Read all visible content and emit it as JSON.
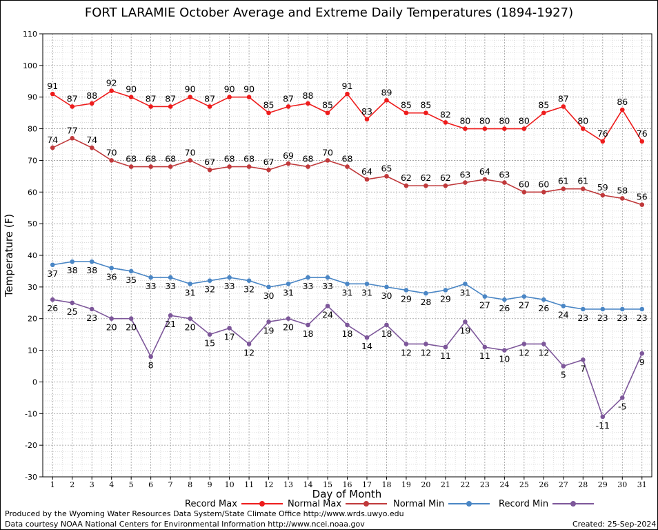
{
  "chart_data": {
    "type": "line",
    "title": "FORT LARAMIE October Average and Extreme Daily Temperatures (1894-1927)",
    "xlabel": "Day of Month",
    "ylabel": "Temperature (F)",
    "ylim": [
      -30,
      110
    ],
    "yticks": [
      -30,
      -20,
      -10,
      0,
      10,
      20,
      30,
      40,
      50,
      60,
      70,
      80,
      90,
      100,
      110
    ],
    "x": [
      1,
      2,
      3,
      4,
      5,
      6,
      7,
      8,
      9,
      10,
      11,
      12,
      13,
      14,
      15,
      16,
      17,
      18,
      19,
      20,
      21,
      22,
      23,
      24,
      25,
      26,
      27,
      28,
      29,
      30,
      31
    ],
    "grid": true,
    "series": [
      {
        "name": "Record Max",
        "color": "#ee1c1c",
        "label_pos": "above",
        "values": [
          91,
          87,
          88,
          92,
          90,
          87,
          87,
          90,
          87,
          90,
          90,
          85,
          87,
          88,
          85,
          91,
          83,
          89,
          85,
          85,
          82,
          80,
          80,
          80,
          80,
          85,
          87,
          80,
          76,
          86,
          76
        ]
      },
      {
        "name": "Normal Max",
        "color": "#c0393b",
        "label_pos": "above",
        "values": [
          74,
          77,
          74,
          70,
          68,
          68,
          68,
          70,
          67,
          68,
          68,
          67,
          69,
          68,
          70,
          68,
          64,
          65,
          62,
          62,
          62,
          63,
          64,
          63,
          60,
          60,
          61,
          61,
          59,
          58,
          56
        ]
      },
      {
        "name": "Normal Min",
        "color": "#4a86c5",
        "label_pos": "below",
        "values": [
          37,
          38,
          38,
          36,
          35,
          33,
          33,
          31,
          32,
          33,
          32,
          30,
          31,
          33,
          33,
          31,
          31,
          30,
          29,
          28,
          29,
          31,
          27,
          26,
          27,
          26,
          24,
          23,
          23,
          23,
          23
        ]
      },
      {
        "name": "Record Min",
        "color": "#7d579a",
        "label_pos": "below",
        "values": [
          26,
          25,
          23,
          20,
          20,
          8,
          21,
          20,
          15,
          17,
          12,
          19,
          20,
          18,
          24,
          18,
          14,
          18,
          12,
          12,
          11,
          19,
          11,
          10,
          12,
          12,
          5,
          7,
          -11,
          -5,
          9
        ]
      }
    ]
  },
  "footer": {
    "produced_by": "Produced by the Wyoming Water Resources Data System/State Climate Office http://www.wrds.uwyo.edu",
    "data_courtesy": "Data courtesy NOAA National Centers for Environmental Information http://www.ncei.noaa.gov",
    "created": "Created:  25-Sep-2024"
  }
}
